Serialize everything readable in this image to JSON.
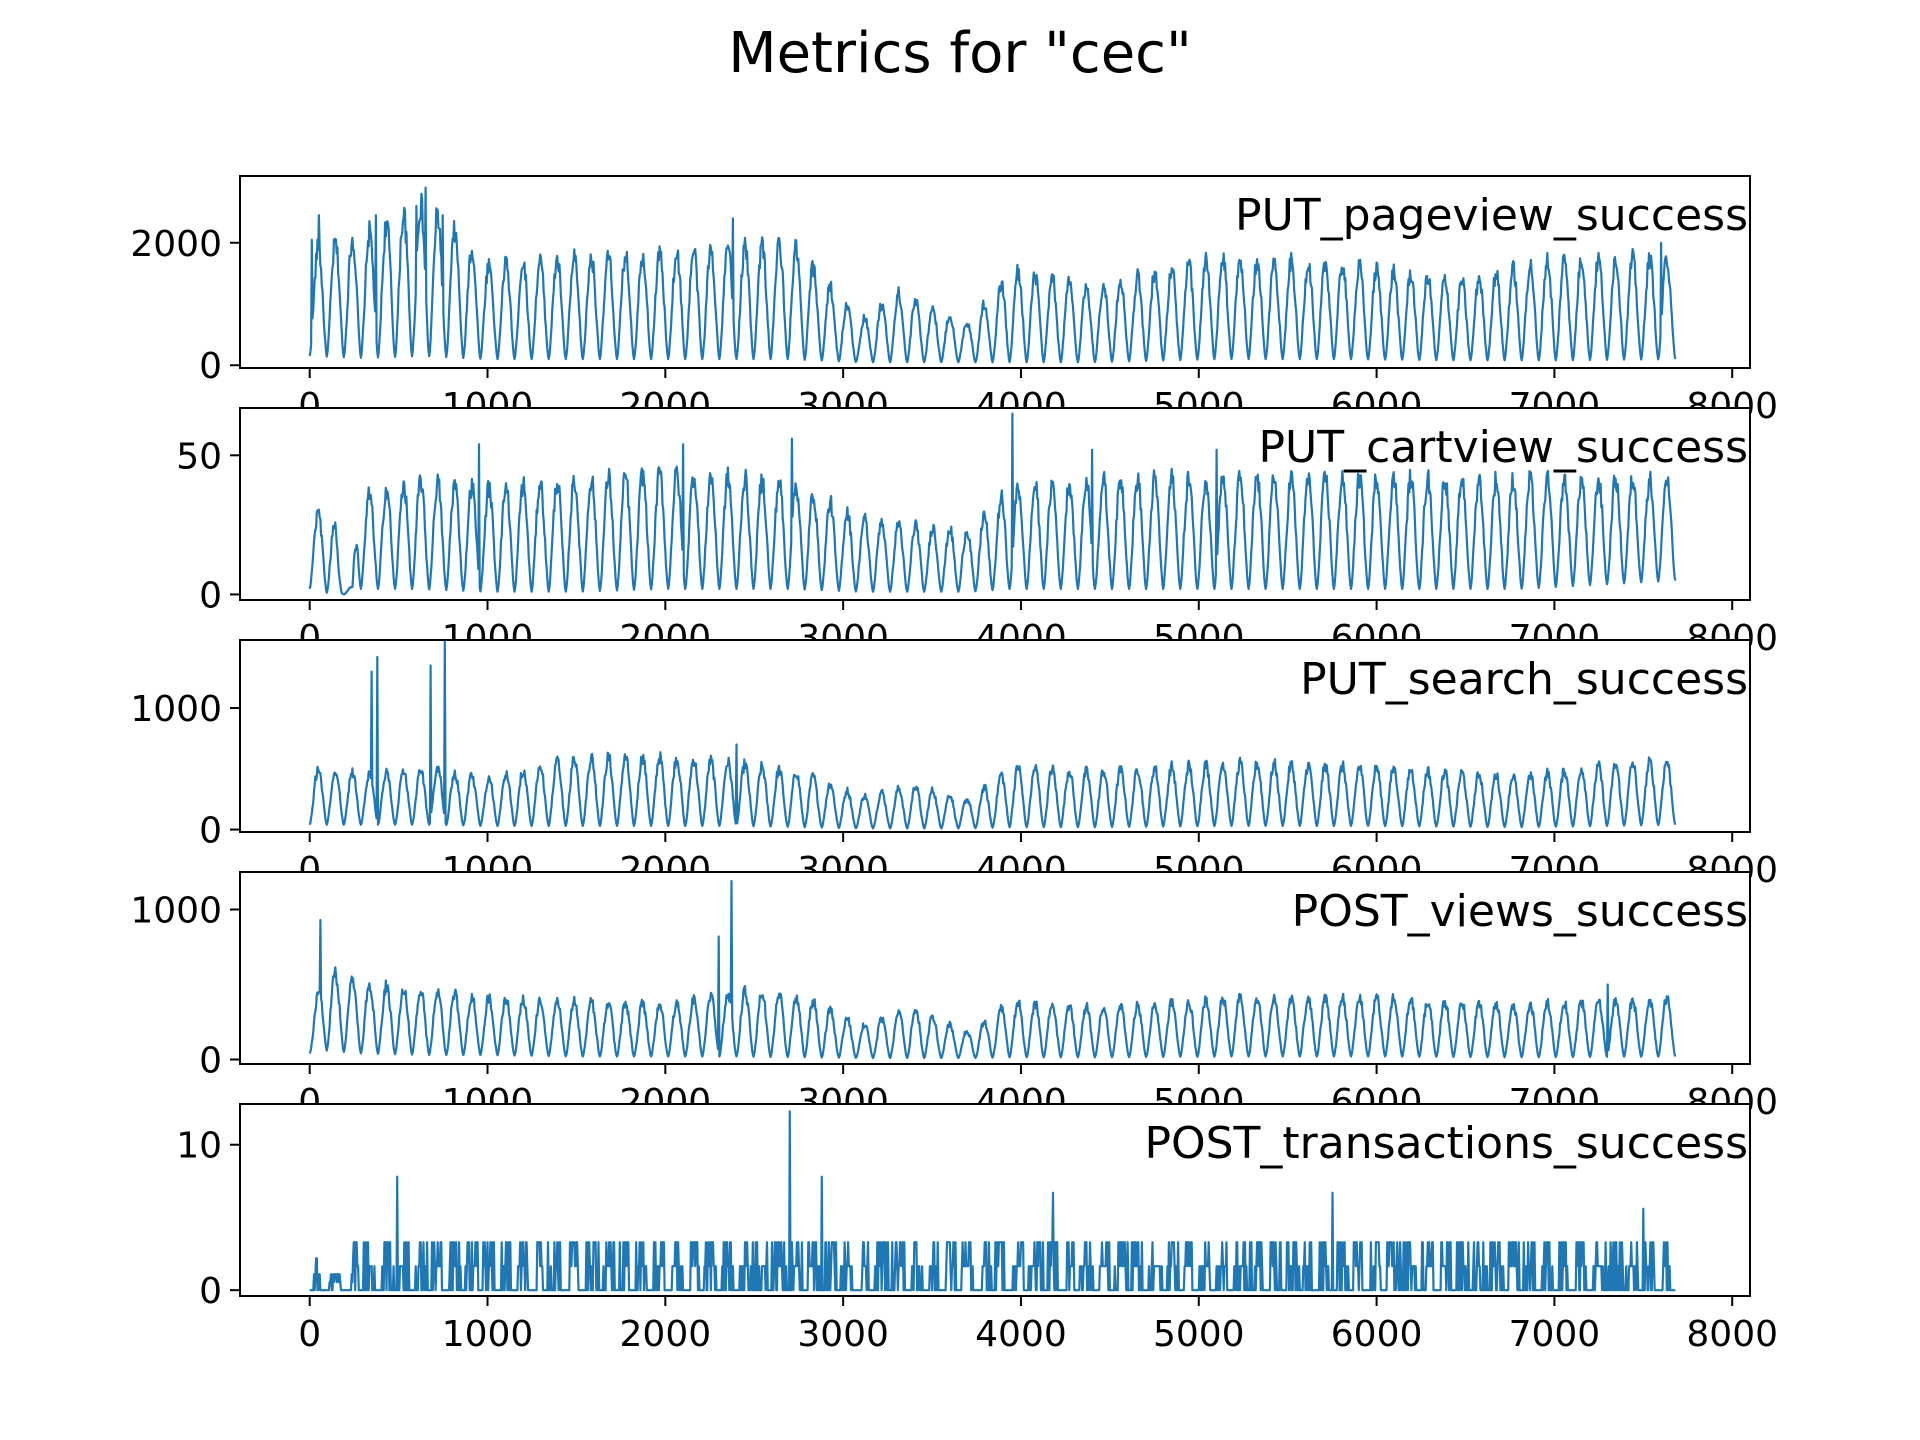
{
  "figure": {
    "title": "Metrics for \"cec\""
  },
  "chart_data": [
    {
      "type": "line",
      "label": "PUT_pageview_success",
      "xlim": [
        -392,
        8100
      ],
      "ylim": [
        -45,
        3090
      ],
      "xticks": [
        0,
        1000,
        2000,
        3000,
        4000,
        5000,
        6000,
        7000,
        8000
      ],
      "yticks": [
        0,
        2000
      ],
      "x_range": [
        0,
        7680
      ],
      "color": "#1f77b4",
      "envelope": [
        {
          "x": 0,
          "low": 150,
          "high": 2050
        },
        {
          "x": 300,
          "low": 120,
          "high": 2300
        },
        {
          "x": 650,
          "low": 150,
          "high": 2900
        },
        {
          "x": 1000,
          "low": 100,
          "high": 1800
        },
        {
          "x": 1500,
          "low": 100,
          "high": 1900
        },
        {
          "x": 2000,
          "low": 100,
          "high": 2000
        },
        {
          "x": 2400,
          "low": 100,
          "high": 2100
        },
        {
          "x": 2700,
          "low": 100,
          "high": 2200
        },
        {
          "x": 3100,
          "low": 50,
          "high": 800
        },
        {
          "x": 3300,
          "low": 50,
          "high": 1300
        },
        {
          "x": 3700,
          "low": 50,
          "high": 750
        },
        {
          "x": 3950,
          "low": 50,
          "high": 1700
        },
        {
          "x": 4400,
          "low": 50,
          "high": 1400
        },
        {
          "x": 5100,
          "low": 100,
          "high": 1900
        },
        {
          "x": 5800,
          "low": 100,
          "high": 1800
        },
        {
          "x": 6500,
          "low": 80,
          "high": 1500
        },
        {
          "x": 7000,
          "low": 80,
          "high": 1900
        },
        {
          "x": 7680,
          "low": 100,
          "high": 1900
        }
      ],
      "spikes": [
        {
          "x": 10,
          "y": 2050
        },
        {
          "x": 50,
          "y": 2450
        },
        {
          "x": 370,
          "y": 2450
        },
        {
          "x": 600,
          "y": 2600
        },
        {
          "x": 650,
          "y": 2900
        },
        {
          "x": 745,
          "y": 2450
        },
        {
          "x": 2380,
          "y": 2400
        },
        {
          "x": 7600,
          "y": 2000
        }
      ]
    },
    {
      "type": "line",
      "label": "PUT_cartview_success",
      "xlim": [
        -392,
        8100
      ],
      "ylim": [
        -2,
        67
      ],
      "xticks": [
        0,
        1000,
        2000,
        3000,
        4000,
        5000,
        6000,
        7000,
        8000
      ],
      "yticks": [
        0,
        50
      ],
      "x_range": [
        0,
        7680
      ],
      "color": "#1f77b4",
      "envelope": [
        {
          "x": 0,
          "low": 2,
          "high": 33
        },
        {
          "x": 140,
          "low": 0,
          "high": 30
        },
        {
          "x": 180,
          "low": 0,
          "high": 3
        },
        {
          "x": 240,
          "low": 0,
          "high": 3
        },
        {
          "x": 270,
          "low": 2,
          "high": 38
        },
        {
          "x": 600,
          "low": 2,
          "high": 45
        },
        {
          "x": 1000,
          "low": 1,
          "high": 42
        },
        {
          "x": 1500,
          "low": 1,
          "high": 45
        },
        {
          "x": 2000,
          "low": 2,
          "high": 48
        },
        {
          "x": 2700,
          "low": 2,
          "high": 44
        },
        {
          "x": 3100,
          "low": 1,
          "high": 30
        },
        {
          "x": 3700,
          "low": 1,
          "high": 25
        },
        {
          "x": 3950,
          "low": 2,
          "high": 42
        },
        {
          "x": 4500,
          "low": 2,
          "high": 45
        },
        {
          "x": 5200,
          "low": 2,
          "high": 46
        },
        {
          "x": 6000,
          "low": 2,
          "high": 46
        },
        {
          "x": 6800,
          "low": 2,
          "high": 45
        },
        {
          "x": 7680,
          "low": 5,
          "high": 45
        }
      ],
      "spikes": [
        {
          "x": 2710,
          "y": 56
        },
        {
          "x": 3950,
          "y": 65
        },
        {
          "x": 950,
          "y": 54
        },
        {
          "x": 2100,
          "y": 54
        },
        {
          "x": 4400,
          "y": 52
        },
        {
          "x": 5100,
          "y": 52
        }
      ]
    },
    {
      "type": "line",
      "label": "PUT_search_success",
      "xlim": [
        -392,
        8100
      ],
      "ylim": [
        -20,
        1560
      ],
      "xticks": [
        0,
        1000,
        2000,
        3000,
        4000,
        5000,
        6000,
        7000,
        8000
      ],
      "yticks": [
        0,
        1000
      ],
      "x_range": [
        0,
        7680
      ],
      "color": "#1f77b4",
      "envelope": [
        {
          "x": 0,
          "low": 40,
          "high": 550
        },
        {
          "x": 300,
          "low": 40,
          "high": 500
        },
        {
          "x": 700,
          "low": 40,
          "high": 550
        },
        {
          "x": 1000,
          "low": 30,
          "high": 450
        },
        {
          "x": 1500,
          "low": 30,
          "high": 650
        },
        {
          "x": 2000,
          "low": 30,
          "high": 650
        },
        {
          "x": 2400,
          "low": 30,
          "high": 600
        },
        {
          "x": 2800,
          "low": 20,
          "high": 500
        },
        {
          "x": 3100,
          "low": 10,
          "high": 300
        },
        {
          "x": 3400,
          "low": 10,
          "high": 400
        },
        {
          "x": 3700,
          "low": 10,
          "high": 270
        },
        {
          "x": 3950,
          "low": 20,
          "high": 570
        },
        {
          "x": 4400,
          "low": 20,
          "high": 520
        },
        {
          "x": 5200,
          "low": 30,
          "high": 600
        },
        {
          "x": 6000,
          "low": 30,
          "high": 560
        },
        {
          "x": 6800,
          "low": 20,
          "high": 480
        },
        {
          "x": 7300,
          "low": 30,
          "high": 580
        },
        {
          "x": 7680,
          "low": 40,
          "high": 620
        }
      ],
      "spikes": [
        {
          "x": 345,
          "y": 1300
        },
        {
          "x": 380,
          "y": 1420
        },
        {
          "x": 680,
          "y": 1350
        },
        {
          "x": 760,
          "y": 1550
        },
        {
          "x": 2400,
          "y": 700
        }
      ]
    },
    {
      "type": "line",
      "label": "POST_views_success",
      "xlim": [
        -392,
        8100
      ],
      "ylim": [
        -30,
        1250
      ],
      "xticks": [
        0,
        1000,
        2000,
        3000,
        4000,
        5000,
        6000,
        7000,
        8000
      ],
      "yticks": [
        0,
        1000
      ],
      "x_range": [
        0,
        7680
      ],
      "color": "#1f77b4",
      "envelope": [
        {
          "x": 0,
          "low": 40,
          "high": 350
        },
        {
          "x": 100,
          "low": 60,
          "high": 650
        },
        {
          "x": 300,
          "low": 40,
          "high": 550
        },
        {
          "x": 700,
          "low": 30,
          "high": 500
        },
        {
          "x": 1000,
          "low": 30,
          "high": 450
        },
        {
          "x": 1500,
          "low": 20,
          "high": 420
        },
        {
          "x": 2000,
          "low": 20,
          "high": 400
        },
        {
          "x": 2400,
          "low": 20,
          "high": 500
        },
        {
          "x": 2800,
          "low": 15,
          "high": 450
        },
        {
          "x": 3100,
          "low": 10,
          "high": 250
        },
        {
          "x": 3400,
          "low": 10,
          "high": 380
        },
        {
          "x": 3700,
          "low": 10,
          "high": 200
        },
        {
          "x": 3950,
          "low": 15,
          "high": 420
        },
        {
          "x": 4500,
          "low": 15,
          "high": 380
        },
        {
          "x": 5200,
          "low": 20,
          "high": 450
        },
        {
          "x": 6000,
          "low": 20,
          "high": 450
        },
        {
          "x": 6800,
          "low": 15,
          "high": 400
        },
        {
          "x": 7680,
          "low": 20,
          "high": 450
        }
      ],
      "spikes": [
        {
          "x": 60,
          "y": 930
        },
        {
          "x": 2300,
          "y": 820
        },
        {
          "x": 2370,
          "y": 1190
        },
        {
          "x": 7300,
          "y": 500
        }
      ]
    },
    {
      "type": "line",
      "label": "POST_transactions_success",
      "xlim": [
        -392,
        8100
      ],
      "ylim": [
        -0.4,
        12.8
      ],
      "xticks": [
        0,
        1000,
        2000,
        3000,
        4000,
        5000,
        6000,
        7000,
        8000
      ],
      "yticks": [
        0,
        10
      ],
      "x_range": [
        0,
        7680
      ],
      "color": "#1f77b4",
      "envelope": [
        {
          "x": 0,
          "low": 0,
          "high": 2.2
        },
        {
          "x": 230,
          "low": 0,
          "high": 0
        },
        {
          "x": 250,
          "low": 0,
          "high": 3.3
        },
        {
          "x": 2000,
          "low": 0,
          "high": 3.3
        },
        {
          "x": 3950,
          "low": 0,
          "high": 3.3
        },
        {
          "x": 7680,
          "low": 0,
          "high": 3.3
        }
      ],
      "spikes": [
        {
          "x": 490,
          "y": 7.8
        },
        {
          "x": 2700,
          "y": 12.3
        },
        {
          "x": 2880,
          "y": 7.8
        },
        {
          "x": 4180,
          "y": 6.7
        },
        {
          "x": 5750,
          "y": 6.7
        },
        {
          "x": 7500,
          "y": 5.6
        }
      ]
    }
  ]
}
